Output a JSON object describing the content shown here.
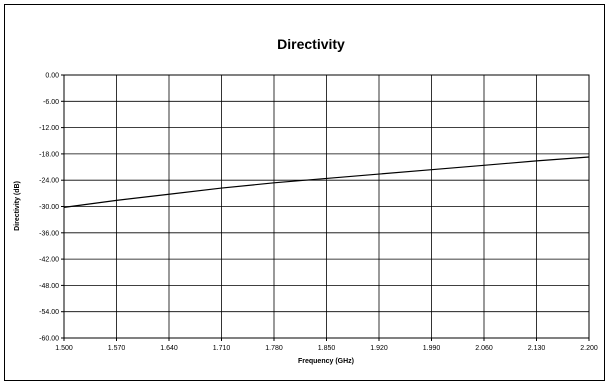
{
  "chart_data": {
    "type": "line",
    "title": "Directivity",
    "xlabel": "Frequency (GHz)",
    "ylabel": "Directivity (dB)",
    "xlim": [
      1.5,
      2.2
    ],
    "ylim": [
      -60,
      0
    ],
    "grid": true,
    "x_ticks": [
      "1.500",
      "1.570",
      "1.640",
      "1.710",
      "1.780",
      "1.850",
      "1.920",
      "1.990",
      "2.060",
      "2.130",
      "2.200"
    ],
    "y_ticks": [
      "0.00",
      "-6.00",
      "-12.00",
      "-18.00",
      "-24.00",
      "-30.00",
      "-36.00",
      "-42.00",
      "-48.00",
      "-54.00",
      "-60.00"
    ],
    "series": [
      {
        "x": [
          1.5,
          1.57,
          1.64,
          1.71,
          1.78,
          1.85,
          1.92,
          1.99,
          2.06,
          2.13,
          2.2
        ],
        "y": [
          -30.2,
          -28.6,
          -27.2,
          -25.8,
          -24.6,
          -23.6,
          -22.6,
          -21.6,
          -20.6,
          -19.6,
          -18.7
        ]
      }
    ],
    "colors": {
      "line": "#000000",
      "grid": "#000000",
      "border": "#000000"
    }
  }
}
